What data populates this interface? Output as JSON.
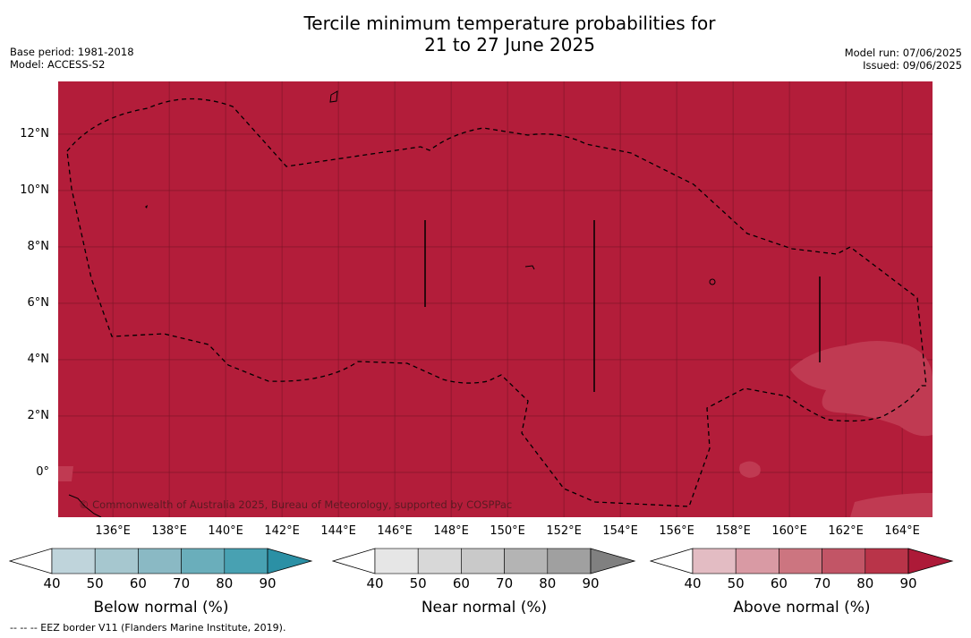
{
  "title": {
    "line1": "Tercile minimum temperature probabilities for",
    "line2": "21 to 27 June 2025"
  },
  "meta_left": {
    "base_period": "Base period: 1981-2018",
    "model": "Model: ACCESS-S2"
  },
  "meta_right": {
    "model_run": "Model run: 07/06/2025",
    "issued": "Issued: 09/06/2025"
  },
  "map": {
    "background_color": "#b31d3a",
    "patch_color": "#c03a52",
    "grid_color": "#7a1426",
    "copyright": "© Commonwealth of Australia 2025, Bureau of Meteorology, supported by COSPPac",
    "y_ticks": [
      {
        "lat": 12,
        "label": "12°N"
      },
      {
        "lat": 10,
        "label": "10°N"
      },
      {
        "lat": 8,
        "label": "8°N"
      },
      {
        "lat": 6,
        "label": "6°N"
      },
      {
        "lat": 4,
        "label": "4°N"
      },
      {
        "lat": 2,
        "label": "2°N"
      },
      {
        "lat": 0,
        "label": "0°"
      }
    ],
    "x_ticks": [
      {
        "lon": 136,
        "label": "136°E"
      },
      {
        "lon": 138,
        "label": "138°E"
      },
      {
        "lon": 140,
        "label": "140°E"
      },
      {
        "lon": 142,
        "label": "142°E"
      },
      {
        "lon": 144,
        "label": "144°E"
      },
      {
        "lon": 146,
        "label": "146°E"
      },
      {
        "lon": 148,
        "label": "148°E"
      },
      {
        "lon": 150,
        "label": "150°E"
      },
      {
        "lon": 152,
        "label": "152°E"
      },
      {
        "lon": 154,
        "label": "154°E"
      },
      {
        "lon": 156,
        "label": "156°E"
      },
      {
        "lon": 158,
        "label": "158°E"
      },
      {
        "lon": 160,
        "label": "160°E"
      },
      {
        "lon": 162,
        "label": "162°E"
      },
      {
        "lon": 164,
        "label": "164°E"
      }
    ]
  },
  "colorbars": [
    {
      "title": "Below normal (%)",
      "ticks": [
        "40",
        "50",
        "60",
        "70",
        "80",
        "90"
      ],
      "colors": [
        "#ffffff",
        "#bfd4db",
        "#a6c7cf",
        "#8ab9c4",
        "#6aaebb",
        "#48a1b2",
        "#2b90a5"
      ]
    },
    {
      "title": "Near normal (%)",
      "ticks": [
        "40",
        "50",
        "60",
        "70",
        "80",
        "90"
      ],
      "colors": [
        "#ffffff",
        "#e6e6e6",
        "#d8d8d8",
        "#c9c9c9",
        "#b4b4b4",
        "#a0a0a0",
        "#808080"
      ]
    },
    {
      "title": "Above normal (%)",
      "ticks": [
        "40",
        "50",
        "60",
        "70",
        "80",
        "90"
      ],
      "colors": [
        "#ffffff",
        "#e3bcc3",
        "#d99aa4",
        "#cc7580",
        "#c25566",
        "#b93449",
        "#ad1a38"
      ]
    }
  ],
  "footnote": "--  --  -- EEZ border V11 (Flanders Marine Institute, 2019)."
}
